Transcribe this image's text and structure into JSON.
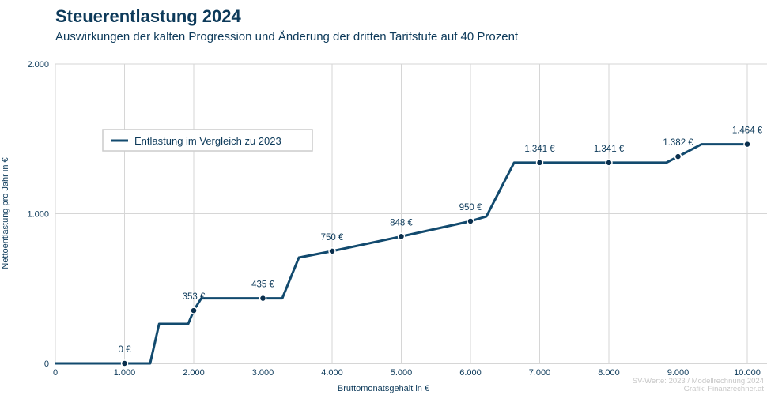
{
  "chart_data": {
    "type": "line",
    "title": "Steuerentlastung 2024",
    "subtitle": "Auswirkungen der kalten Progression und Änderung der dritten Tarifstufe auf 40 Prozent",
    "xlabel": "Bruttomonatsgehalt in €",
    "ylabel": "Nettoentlastung pro Jahr in €",
    "xlim": [
      0,
      10000
    ],
    "ylim": [
      0,
      2000
    ],
    "xticks": [
      0,
      1000,
      2000,
      3000,
      4000,
      5000,
      6000,
      7000,
      8000,
      9000,
      10000
    ],
    "xtick_labels": [
      "0",
      "1.000",
      "2.000",
      "3.000",
      "4.000",
      "5.000",
      "6.000",
      "7.000",
      "8.000",
      "9.000",
      "10.000"
    ],
    "yticks": [
      0,
      1000,
      2000
    ],
    "ytick_labels": [
      "0",
      "1.000",
      "2.000"
    ],
    "grid": true,
    "legend_position": "top-left",
    "color": "#124a6e",
    "series": [
      {
        "name": "Entlastung im Vergleich zu 2023",
        "line": [
          [
            0,
            0
          ],
          [
            1370,
            0
          ],
          [
            1500,
            264
          ],
          [
            1920,
            264
          ],
          [
            2000,
            353
          ],
          [
            2110,
            435
          ],
          [
            3280,
            435
          ],
          [
            3520,
            707
          ],
          [
            4000,
            750
          ],
          [
            5000,
            848
          ],
          [
            6000,
            950
          ],
          [
            6230,
            982
          ],
          [
            6630,
            1341
          ],
          [
            8830,
            1341
          ],
          [
            9000,
            1382
          ],
          [
            9340,
            1464
          ],
          [
            10000,
            1464
          ]
        ],
        "points": [
          {
            "x": 1000,
            "y": 0,
            "label": "0 €"
          },
          {
            "x": 2000,
            "y": 353,
            "label": "353 €"
          },
          {
            "x": 3000,
            "y": 435,
            "label": "435 €"
          },
          {
            "x": 4000,
            "y": 750,
            "label": "750 €"
          },
          {
            "x": 5000,
            "y": 848,
            "label": "848 €"
          },
          {
            "x": 6000,
            "y": 950,
            "label": "950 €"
          },
          {
            "x": 7000,
            "y": 1341,
            "label": "1.341 €"
          },
          {
            "x": 8000,
            "y": 1341,
            "label": "1.341 €"
          },
          {
            "x": 9000,
            "y": 1382,
            "label": "1.382 €"
          },
          {
            "x": 10000,
            "y": 1464,
            "label": "1.464 €"
          }
        ]
      }
    ],
    "source": [
      "SV-Werte: 2023 / Modellrechnung 2024",
      "Grafik: Finanzrechner.at"
    ]
  }
}
